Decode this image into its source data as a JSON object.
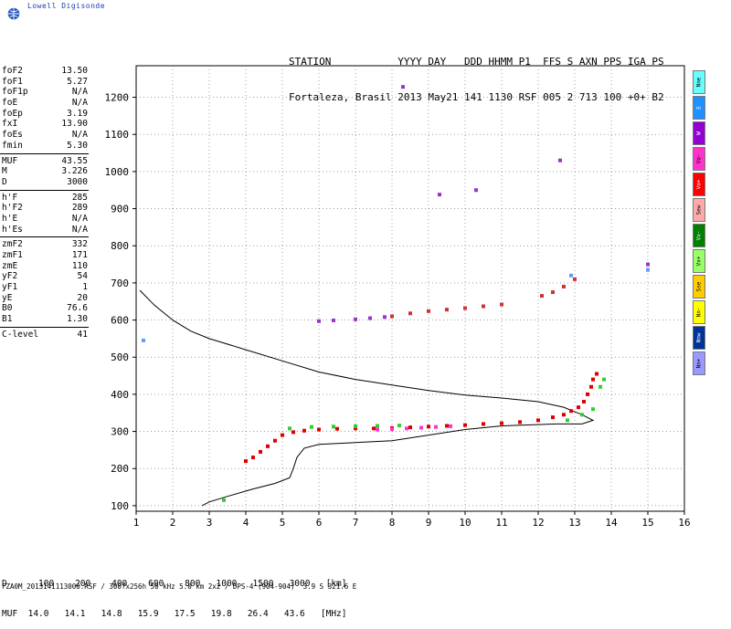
{
  "brand": {
    "text": "Lowell Digisonde",
    "logo_icon": "globe-icon"
  },
  "header": {
    "line1": "STATION           YYYY DAY   DDD HHMM P1  FFS S AXN PPS IGA PS",
    "line2": "Fortaleza, Brasil 2013 May21 141 1130 RSF 005 2 713 100 +0+ B2"
  },
  "params": [
    [
      {
        "k": "foF2",
        "v": "13.50"
      },
      {
        "k": "foF1",
        "v": "5.27"
      },
      {
        "k": "foF1p",
        "v": "N/A"
      },
      {
        "k": "foE",
        "v": "N/A"
      },
      {
        "k": "foEp",
        "v": "3.19"
      },
      {
        "k": "fxI",
        "v": "13.90"
      },
      {
        "k": "foEs",
        "v": "N/A"
      },
      {
        "k": "fmin",
        "v": "5.30"
      }
    ],
    [
      {
        "k": "MUF",
        "v": "43.55"
      },
      {
        "k": "M",
        "v": "3.226"
      },
      {
        "k": "D",
        "v": "3000"
      }
    ],
    [
      {
        "k": "h'F",
        "v": "285"
      },
      {
        "k": "h'F2",
        "v": "289"
      },
      {
        "k": "h'E",
        "v": "N/A"
      },
      {
        "k": "h'Es",
        "v": "N/A"
      }
    ],
    [
      {
        "k": "zmF2",
        "v": "332"
      },
      {
        "k": "zmF1",
        "v": "171"
      },
      {
        "k": "zmE",
        "v": "110"
      },
      {
        "k": "yF2",
        "v": "54"
      },
      {
        "k": "yF1",
        "v": "1"
      },
      {
        "k": "yE",
        "v": "20"
      },
      {
        "k": "B0",
        "v": "76.6"
      },
      {
        "k": "B1",
        "v": "1.30"
      }
    ],
    [
      {
        "k": "C-level",
        "v": "41"
      }
    ]
  ],
  "legend": [
    {
      "label": "Nne",
      "color": "#66ffff"
    },
    {
      "label": "E",
      "color": "#1e90ff"
    },
    {
      "label": "W",
      "color": "#9400d3"
    },
    {
      "label": "Vo-",
      "color": "#ff33cc"
    },
    {
      "label": "Vo+",
      "color": "#ff0000"
    },
    {
      "label": "Sew",
      "color": "#ffaaaa"
    },
    {
      "label": "Vx-",
      "color": "#008000"
    },
    {
      "label": "Vx+",
      "color": "#99ff66"
    },
    {
      "label": "Sse",
      "color": "#ffcc00"
    },
    {
      "label": "Nn-",
      "color": "#ffff00"
    },
    {
      "label": "Nnw",
      "color": "#003399"
    },
    {
      "label": "Nn+",
      "color": "#9999ff"
    }
  ],
  "chart_data": {
    "type": "scatter",
    "xlim": [
      1,
      16
    ],
    "ylim": [
      85,
      1285
    ],
    "xticks": [
      1,
      2,
      3,
      4,
      5,
      6,
      7,
      8,
      9,
      10,
      11,
      12,
      13,
      14,
      15,
      16
    ],
    "yticks": [
      100,
      200,
      300,
      400,
      500,
      600,
      700,
      800,
      900,
      1000,
      1100,
      1200
    ],
    "grid": true,
    "series": [
      {
        "kind": "line",
        "color": "#000000",
        "points": [
          [
            1.1,
            680
          ],
          [
            1.5,
            640
          ],
          [
            2,
            600
          ],
          [
            2.5,
            570
          ],
          [
            3,
            550
          ],
          [
            4,
            520
          ],
          [
            5,
            490
          ],
          [
            6,
            460
          ],
          [
            7,
            440
          ],
          [
            8,
            425
          ],
          [
            9,
            410
          ],
          [
            10,
            398
          ],
          [
            11,
            390
          ],
          [
            12,
            380
          ],
          [
            12.7,
            365
          ],
          [
            13.2,
            345
          ],
          [
            13.5,
            330
          ],
          [
            13.2,
            320
          ],
          [
            12.5,
            320
          ],
          [
            11,
            315
          ],
          [
            10,
            305
          ],
          [
            9,
            290
          ],
          [
            8,
            275
          ],
          [
            7,
            270
          ],
          [
            6,
            265
          ],
          [
            5.6,
            255
          ],
          [
            5.4,
            230
          ],
          [
            5.3,
            200
          ],
          [
            5.2,
            175
          ],
          [
            4.8,
            160
          ],
          [
            4.2,
            145
          ],
          [
            3.5,
            125
          ],
          [
            3,
            110
          ],
          [
            2.8,
            100
          ]
        ]
      },
      {
        "kind": "points",
        "color": "#dd0000",
        "points": [
          [
            4,
            220
          ],
          [
            4.2,
            230
          ],
          [
            4.4,
            245
          ],
          [
            4.6,
            260
          ],
          [
            4.8,
            275
          ],
          [
            5,
            290
          ],
          [
            5.3,
            298
          ],
          [
            5.6,
            302
          ],
          [
            6,
            305
          ],
          [
            6.5,
            307
          ],
          [
            7,
            308
          ],
          [
            7.5,
            308
          ],
          [
            8,
            309
          ],
          [
            8.5,
            311
          ],
          [
            9,
            313
          ],
          [
            9.5,
            315
          ],
          [
            10,
            317
          ],
          [
            10.5,
            320
          ],
          [
            11,
            322
          ],
          [
            11.5,
            325
          ],
          [
            12,
            330
          ],
          [
            12.4,
            338
          ],
          [
            12.7,
            345
          ],
          [
            12.9,
            355
          ],
          [
            13.1,
            365
          ],
          [
            13.25,
            380
          ],
          [
            13.35,
            400
          ],
          [
            13.45,
            420
          ],
          [
            13.5,
            440
          ],
          [
            13.6,
            455
          ]
        ]
      },
      {
        "kind": "points",
        "color": "#ff33cc",
        "points": [
          [
            7.6,
            305
          ],
          [
            8,
            306
          ],
          [
            8.4,
            308
          ],
          [
            8.8,
            310
          ],
          [
            9.2,
            312
          ],
          [
            9.6,
            314
          ]
        ]
      },
      {
        "kind": "points",
        "color": "#33cc33",
        "points": [
          [
            5.2,
            308
          ],
          [
            5.8,
            312
          ],
          [
            6.4,
            313
          ],
          [
            7,
            314
          ],
          [
            7.6,
            315
          ],
          [
            8.2,
            316
          ],
          [
            12.8,
            330
          ],
          [
            13.2,
            345
          ],
          [
            13.5,
            360
          ],
          [
            13.7,
            420
          ],
          [
            13.8,
            440
          ],
          [
            3.4,
            115
          ]
        ]
      },
      {
        "kind": "points",
        "color": "#cc3333",
        "points": [
          [
            8,
            610
          ],
          [
            8.5,
            618
          ],
          [
            9,
            624
          ],
          [
            9.5,
            628
          ],
          [
            10,
            632
          ],
          [
            10.5,
            637
          ],
          [
            11,
            642
          ],
          [
            12.1,
            665
          ],
          [
            12.4,
            675
          ],
          [
            12.7,
            690
          ],
          [
            13,
            710
          ]
        ]
      },
      {
        "kind": "points",
        "color": "#9933cc",
        "points": [
          [
            6,
            597
          ],
          [
            6.4,
            599
          ],
          [
            7,
            602
          ],
          [
            7.4,
            605
          ],
          [
            7.8,
            608
          ],
          [
            8.3,
            1228
          ],
          [
            9.3,
            938
          ],
          [
            10.3,
            950
          ],
          [
            12.6,
            1030
          ],
          [
            15,
            750
          ]
        ]
      },
      {
        "kind": "points",
        "color": "#6699ff",
        "points": [
          [
            1.2,
            545
          ],
          [
            15,
            735
          ],
          [
            12.9,
            720
          ]
        ]
      }
    ]
  },
  "muf_table": {
    "row1": "D      100    200    400    600    800   1000   1500   3000   [km]",
    "row2": "MUF  14.0   14.1   14.8   15.9   17.5   19.8   26.4   43.6   [MHz]"
  },
  "footer": "FZA0M_2013141113000.RSF / 300fx256h 50 kHz 5.0 km 2x2 / DPS-4 (904-904)  3.9 S 321.6 E"
}
